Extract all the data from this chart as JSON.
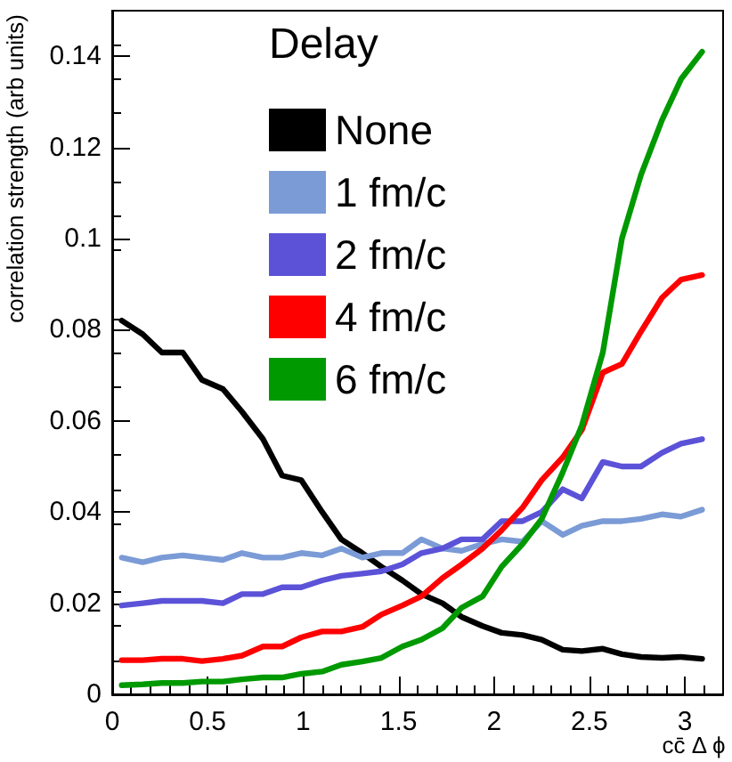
{
  "chart_data": {
    "type": "line",
    "xlabel": "cc̄ Δ ϕ",
    "ylabel": "correlation strength (arb units)",
    "legend_title": "Delay",
    "legend": "top",
    "grid": false,
    "marker": "none",
    "line_style": "solid",
    "xlim": [
      0,
      3.2
    ],
    "xticks": [
      0,
      0.5,
      1,
      1.5,
      2,
      2.5,
      3
    ],
    "ylim": [
      0,
      0.15
    ],
    "yticks": [
      0,
      0.02,
      0.04,
      0.06,
      0.08,
      0.1,
      0.12,
      0.14
    ],
    "x": [
      0.05,
      0.16,
      0.26,
      0.37,
      0.47,
      0.58,
      0.68,
      0.79,
      0.89,
      0.99,
      1.1,
      1.2,
      1.31,
      1.41,
      1.52,
      1.62,
      1.73,
      1.83,
      1.94,
      2.04,
      2.15,
      2.25,
      2.36,
      2.46,
      2.57,
      2.67,
      2.77,
      2.88,
      2.98,
      3.09
    ],
    "series": [
      {
        "name": "None",
        "color": "#000000",
        "values": [
          0.082,
          0.079,
          0.075,
          0.075,
          0.069,
          0.067,
          0.062,
          0.056,
          0.048,
          0.047,
          0.04,
          0.034,
          0.031,
          0.028,
          0.025,
          0.022,
          0.02,
          0.017,
          0.015,
          0.0135,
          0.013,
          0.012,
          0.0098,
          0.0095,
          0.01,
          0.0088,
          0.0082,
          0.008,
          0.0082,
          0.0078
        ]
      },
      {
        "name": "1 fm/c",
        "color": "#7b9bd6",
        "values": [
          0.03,
          0.029,
          0.03,
          0.0305,
          0.03,
          0.0295,
          0.031,
          0.03,
          0.03,
          0.031,
          0.0305,
          0.032,
          0.03,
          0.031,
          0.031,
          0.034,
          0.032,
          0.0315,
          0.033,
          0.034,
          0.0335,
          0.038,
          0.035,
          0.037,
          0.038,
          0.038,
          0.0385,
          0.0395,
          0.039,
          0.0405
        ]
      },
      {
        "name": "2 fm/c",
        "color": "#5b52d8",
        "values": [
          0.0195,
          0.02,
          0.0205,
          0.0205,
          0.0205,
          0.02,
          0.022,
          0.022,
          0.0235,
          0.0235,
          0.025,
          0.026,
          0.0265,
          0.027,
          0.0285,
          0.031,
          0.032,
          0.034,
          0.034,
          0.038,
          0.038,
          0.04,
          0.045,
          0.043,
          0.051,
          0.05,
          0.05,
          0.053,
          0.055,
          0.056
        ]
      },
      {
        "name": "4 fm/c",
        "color": "#ff0000",
        "values": [
          0.0075,
          0.0075,
          0.0078,
          0.0078,
          0.0073,
          0.0078,
          0.0085,
          0.0105,
          0.0105,
          0.0125,
          0.0138,
          0.0138,
          0.0148,
          0.0175,
          0.0195,
          0.0215,
          0.0255,
          0.0285,
          0.032,
          0.036,
          0.041,
          0.047,
          0.052,
          0.058,
          0.0706,
          0.0725,
          0.0796,
          0.087,
          0.091,
          0.092
        ]
      },
      {
        "name": "6 fm/c",
        "color": "#009900",
        "values": [
          0.002,
          0.0022,
          0.0025,
          0.0025,
          0.0028,
          0.0028,
          0.0033,
          0.0037,
          0.0037,
          0.0045,
          0.005,
          0.0065,
          0.0072,
          0.008,
          0.0105,
          0.012,
          0.0145,
          0.019,
          0.0215,
          0.028,
          0.033,
          0.0385,
          0.0487,
          0.059,
          0.075,
          0.1,
          0.114,
          0.126,
          0.135,
          0.141
        ]
      }
    ]
  }
}
